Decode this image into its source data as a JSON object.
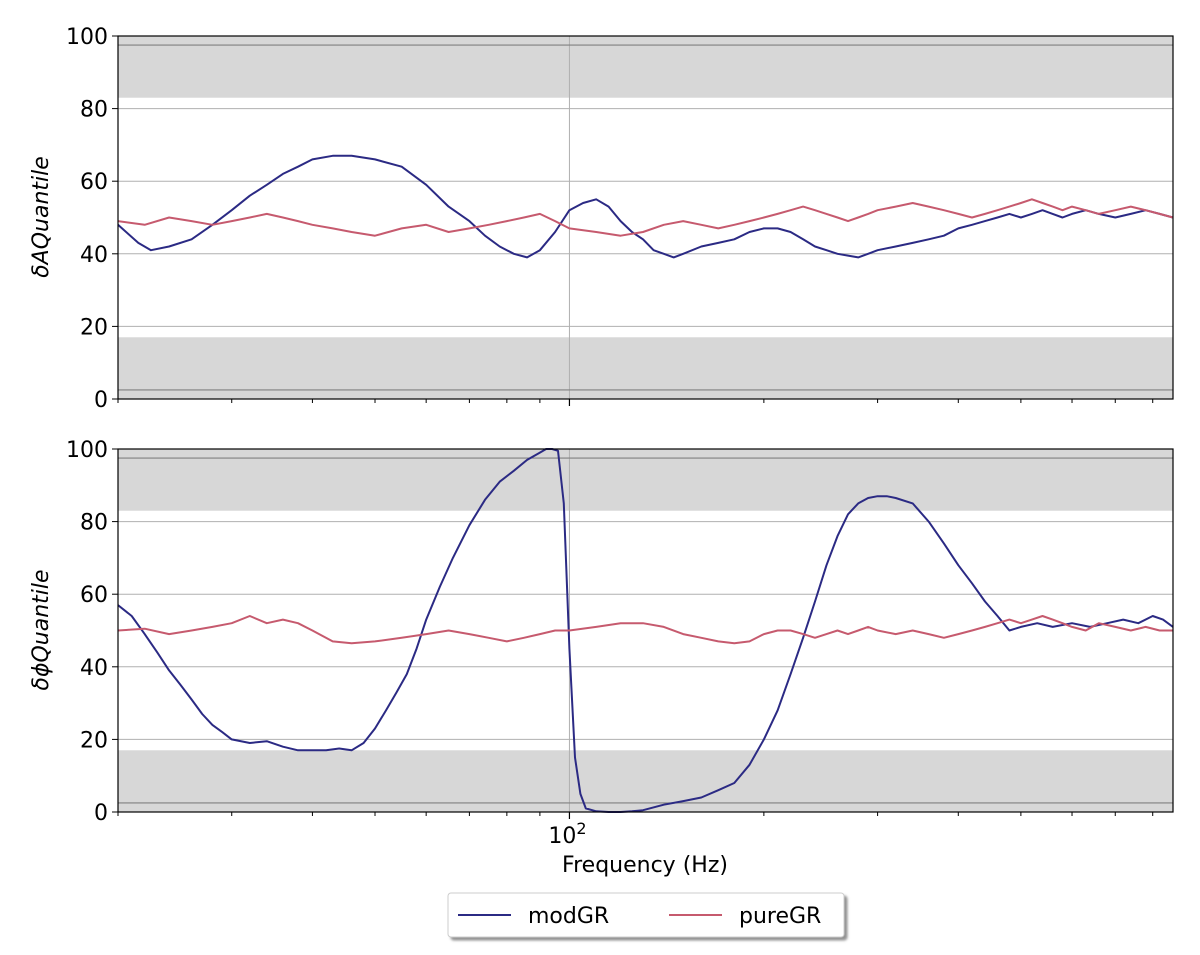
{
  "chart_data": [
    {
      "type": "line",
      "title": "",
      "ylabel": "δAQuantile",
      "xlabel": "",
      "xscale": "log",
      "xlim": [
        20,
        860
      ],
      "ylim": [
        0,
        100
      ],
      "yticks": [
        "0",
        "20",
        "40",
        "60",
        "80",
        "100"
      ],
      "grid": true,
      "shaded_bands": [
        [
          0,
          2.5
        ],
        [
          2.5,
          17
        ],
        [
          83,
          97.5
        ],
        [
          97.5,
          100
        ]
      ],
      "series": [
        {
          "name": "modGR",
          "color": "#2b2a84",
          "x": [
            20,
            21.5,
            22.5,
            24,
            26,
            28,
            30,
            32,
            34,
            36,
            38,
            40,
            43,
            46,
            50,
            55,
            60,
            65,
            70,
            74,
            78,
            82,
            86,
            90,
            95,
            100,
            105,
            110,
            115,
            120,
            125,
            130,
            135,
            140,
            145,
            150,
            160,
            170,
            180,
            190,
            200,
            210,
            220,
            230,
            240,
            250,
            260,
            270,
            280,
            290,
            300,
            320,
            340,
            360,
            380,
            400,
            420,
            440,
            460,
            480,
            500,
            520,
            540,
            560,
            580,
            600,
            630,
            660,
            700,
            740,
            780,
            820,
            860
          ],
          "values": [
            48,
            43,
            41,
            42,
            44,
            48,
            52,
            56,
            59,
            62,
            64,
            66,
            67,
            67,
            66,
            64,
            59,
            53,
            49,
            45,
            42,
            40,
            39,
            41,
            46,
            52,
            54,
            55,
            53,
            49,
            46,
            44,
            41,
            40,
            39,
            40,
            42,
            43,
            44,
            46,
            47,
            47,
            46,
            44,
            42,
            41,
            40,
            39.5,
            39,
            40,
            41,
            42,
            43,
            44,
            45,
            47,
            48,
            49,
            50,
            51,
            50,
            51,
            52,
            51,
            50,
            51,
            52,
            51,
            50,
            51,
            52,
            51,
            50
          ]
        },
        {
          "name": "pureGR",
          "color": "#c65a6e",
          "x": [
            20,
            22,
            24,
            26,
            28,
            30,
            32,
            34,
            36,
            38,
            40,
            43,
            46,
            50,
            55,
            60,
            65,
            70,
            75,
            80,
            85,
            90,
            95,
            100,
            110,
            120,
            130,
            140,
            150,
            160,
            170,
            180,
            190,
            200,
            210,
            220,
            230,
            240,
            250,
            260,
            270,
            280,
            290,
            300,
            320,
            340,
            360,
            380,
            400,
            420,
            440,
            460,
            480,
            500,
            520,
            540,
            560,
            580,
            600,
            630,
            660,
            700,
            740,
            780,
            820,
            860
          ],
          "values": [
            49,
            48,
            50,
            49,
            48,
            49,
            50,
            51,
            50,
            49,
            48,
            47,
            46,
            45,
            47,
            48,
            46,
            47,
            48,
            49,
            50,
            51,
            49,
            47,
            46,
            45,
            46,
            48,
            49,
            48,
            47,
            48,
            49,
            50,
            51,
            52,
            53,
            52,
            51,
            50,
            49,
            50,
            51,
            52,
            53,
            54,
            53,
            52,
            51,
            50,
            51,
            52,
            53,
            54,
            55,
            54,
            53,
            52,
            53,
            52,
            51,
            52,
            53,
            52,
            51,
            50
          ]
        }
      ]
    },
    {
      "type": "line",
      "title": "",
      "ylabel": "δϕQuantile",
      "xlabel": "Frequency (Hz)",
      "xscale": "log",
      "xlim": [
        20,
        860
      ],
      "ylim": [
        0,
        100
      ],
      "yticks": [
        "0",
        "20",
        "40",
        "60",
        "80",
        "100"
      ],
      "xtick_major": {
        "value": 100,
        "base": "10",
        "exponent": "2"
      },
      "grid": true,
      "shaded_bands": [
        [
          0,
          2.5
        ],
        [
          2.5,
          17
        ],
        [
          83,
          97.5
        ],
        [
          97.5,
          100
        ]
      ],
      "series": [
        {
          "name": "modGR",
          "color": "#2b2a84",
          "x": [
            20,
            21,
            22,
            23,
            24,
            25,
            26,
            27,
            28,
            29,
            30,
            32,
            34,
            36,
            38,
            40,
            42,
            44,
            46,
            48,
            50,
            52,
            54,
            56,
            58,
            60,
            63,
            66,
            70,
            74,
            78,
            82,
            86,
            90,
            92,
            94,
            96,
            98,
            100,
            102,
            104,
            106,
            110,
            115,
            120,
            125,
            130,
            140,
            150,
            160,
            170,
            180,
            190,
            200,
            210,
            220,
            230,
            240,
            250,
            260,
            270,
            280,
            290,
            300,
            310,
            320,
            340,
            360,
            380,
            400,
            420,
            440,
            460,
            480,
            500,
            530,
            560,
            600,
            640,
            680,
            720,
            760,
            800,
            830,
            860
          ],
          "values": [
            57,
            54,
            49,
            44,
            39,
            35,
            31,
            27,
            24,
            22,
            20,
            19,
            19.5,
            18,
            17,
            17,
            17,
            17.5,
            17,
            19,
            23,
            28,
            33,
            38,
            45,
            53,
            62,
            70,
            79,
            86,
            91,
            94,
            97,
            99,
            100,
            100,
            99.5,
            85,
            45,
            15,
            5,
            1,
            0.2,
            0,
            0,
            0.2,
            0.5,
            2,
            3,
            4,
            6,
            8,
            13,
            20,
            28,
            38,
            48,
            58,
            68,
            76,
            82,
            85,
            86.5,
            87,
            87,
            86.5,
            85,
            80,
            74,
            68,
            63,
            58,
            54,
            50,
            51,
            52,
            51,
            52,
            51,
            52,
            53,
            52,
            54,
            53,
            51
          ]
        },
        {
          "name": "pureGR",
          "color": "#c65a6e",
          "x": [
            20,
            22,
            24,
            26,
            28,
            30,
            32,
            34,
            36,
            38,
            40,
            43,
            46,
            50,
            55,
            60,
            65,
            70,
            75,
            80,
            85,
            90,
            95,
            100,
            110,
            120,
            130,
            140,
            150,
            160,
            170,
            180,
            190,
            200,
            210,
            220,
            230,
            240,
            250,
            260,
            270,
            280,
            290,
            300,
            320,
            340,
            360,
            380,
            400,
            420,
            440,
            460,
            480,
            500,
            520,
            540,
            560,
            580,
            600,
            630,
            660,
            700,
            740,
            780,
            820,
            860
          ],
          "values": [
            50,
            50.5,
            49,
            50,
            51,
            52,
            54,
            52,
            53,
            52,
            50,
            47,
            46.5,
            47,
            48,
            49,
            50,
            49,
            48,
            47,
            48,
            49,
            50,
            50,
            51,
            52,
            52,
            51,
            49,
            48,
            47,
            46.5,
            47,
            49,
            50,
            50,
            49,
            48,
            49,
            50,
            49,
            50,
            51,
            50,
            49,
            50,
            49,
            48,
            49,
            50,
            51,
            52,
            53,
            52,
            53,
            54,
            53,
            52,
            51,
            50,
            52,
            51,
            50,
            51,
            50,
            50
          ]
        }
      ]
    }
  ],
  "legend": {
    "placement": "bottom-center",
    "entries": [
      {
        "label": "modGR",
        "color": "#2b2a84"
      },
      {
        "label": "pureGR",
        "color": "#c65a6e"
      }
    ]
  }
}
